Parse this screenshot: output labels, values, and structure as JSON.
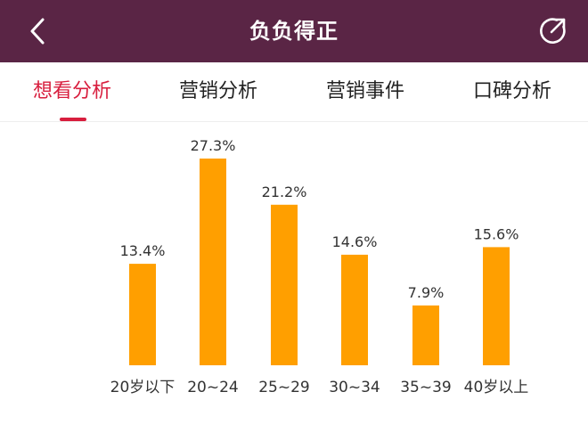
{
  "header": {
    "title": "负负得正",
    "back_icon": "chevron-left-icon",
    "share_icon": "share-icon",
    "bg_color": "#5a2545"
  },
  "tabs": [
    {
      "label": "想看分析",
      "active": true
    },
    {
      "label": "营销分析",
      "active": false
    },
    {
      "label": "营销事件",
      "active": false
    },
    {
      "label": "口碑分析",
      "active": false
    }
  ],
  "accent_color": "#d81e3e",
  "chart_data": {
    "type": "bar",
    "categories": [
      "20岁以下",
      "20~24",
      "25~29",
      "30~34",
      "35~39",
      "40岁以上"
    ],
    "values": [
      13.4,
      27.3,
      21.2,
      14.6,
      7.9,
      15.6
    ],
    "value_labels": [
      "13.4%",
      "27.3%",
      "21.2%",
      "14.6%",
      "7.9%",
      "15.6%"
    ],
    "bar_color": "#ff9f00",
    "ylim": [
      0,
      30
    ],
    "grid": false
  }
}
